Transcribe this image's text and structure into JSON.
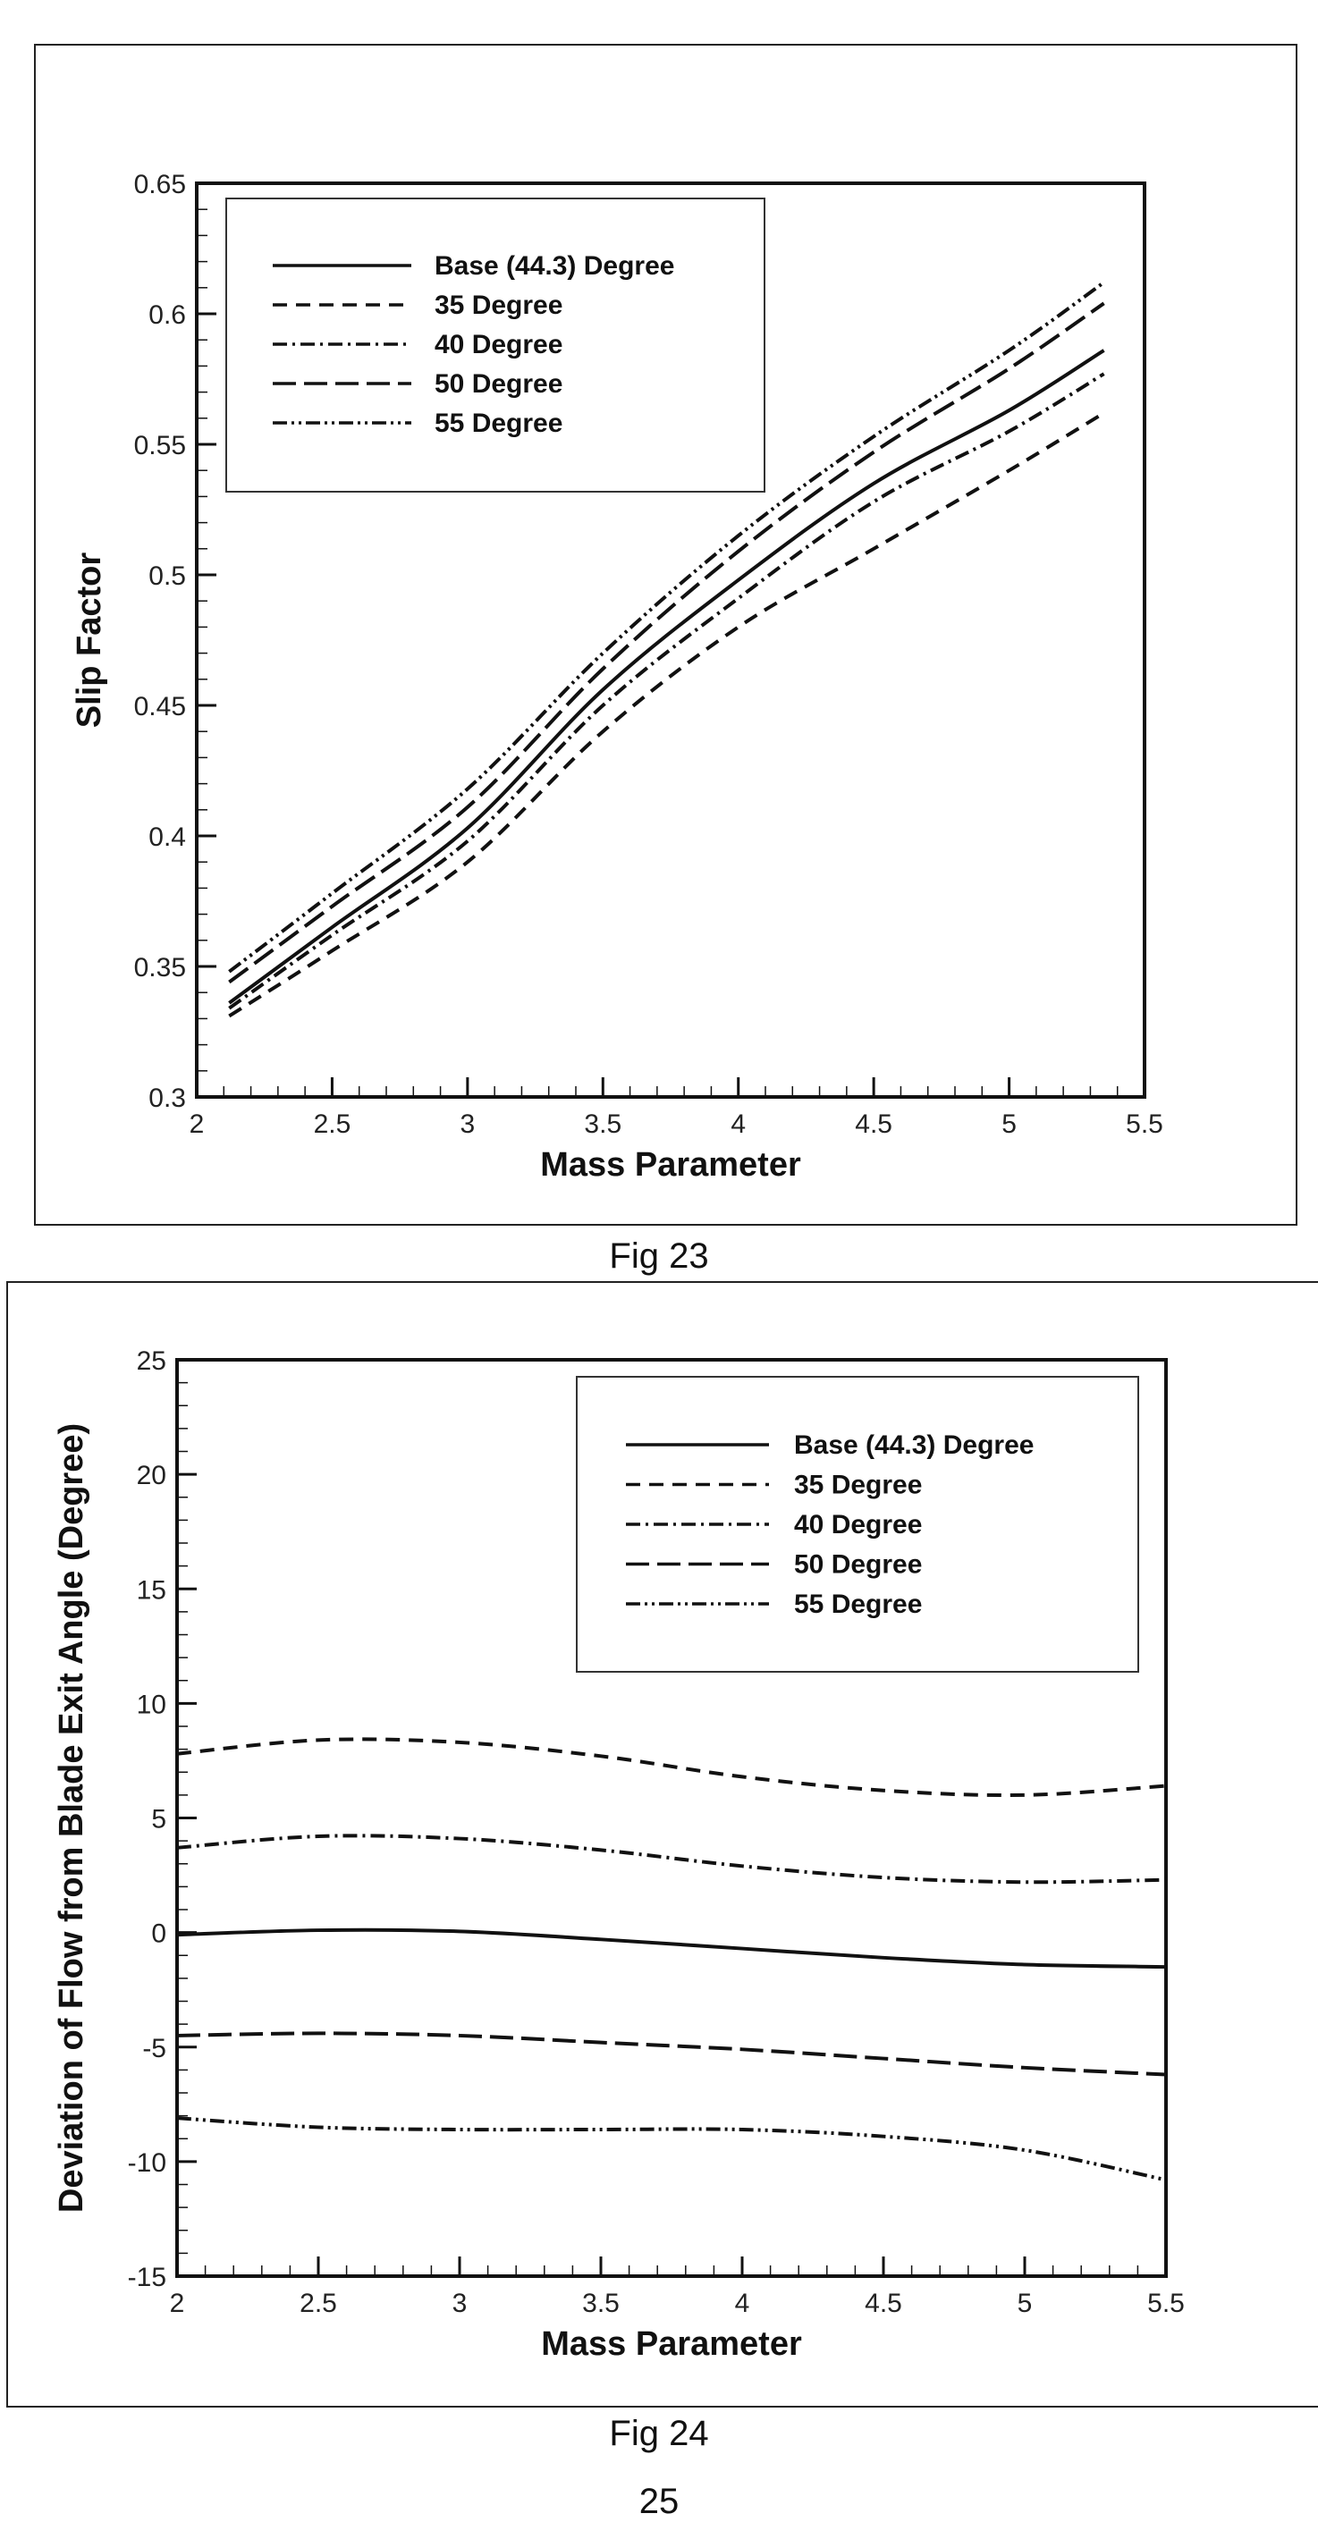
{
  "chart_data": [
    {
      "type": "line",
      "title": "",
      "caption": "Fig 23",
      "xlabel": "Mass Parameter",
      "ylabel": "Slip Factor",
      "xlim": [
        2,
        5.5
      ],
      "ylim": [
        0.3,
        0.65
      ],
      "xticks": [
        "2",
        "2.5",
        "3",
        "3.5",
        "4",
        "4.5",
        "5",
        "5.5"
      ],
      "yticks": [
        "0.3",
        "0.35",
        "0.4",
        "0.45",
        "0.5",
        "0.55",
        "0.6",
        "0.65"
      ],
      "legend_position": "top-left",
      "x": [
        2.12,
        2.5,
        3,
        3.5,
        4,
        4.5,
        5,
        5.35
      ],
      "series": [
        {
          "name": "Base (44.3)  Degree",
          "style": "solid",
          "values": [
            0.336,
            0.365,
            0.403,
            0.456,
            0.498,
            0.535,
            0.563,
            0.586
          ]
        },
        {
          "name": "35 Degree",
          "style": "dashed",
          "values": [
            0.331,
            0.356,
            0.39,
            0.44,
            0.48,
            0.51,
            0.54,
            0.562
          ]
        },
        {
          "name": "40 Degree",
          "style": "dash-dot",
          "values": [
            0.334,
            0.362,
            0.398,
            0.45,
            0.491,
            0.528,
            0.555,
            0.577
          ]
        },
        {
          "name": "50 Degree",
          "style": "long-dash",
          "values": [
            0.344,
            0.373,
            0.411,
            0.464,
            0.509,
            0.547,
            0.579,
            0.604
          ]
        },
        {
          "name": "55 Degree",
          "style": "dash-dot-dot",
          "values": [
            0.348,
            0.378,
            0.418,
            0.47,
            0.515,
            0.553,
            0.586,
            0.612
          ]
        }
      ]
    },
    {
      "type": "line",
      "title": "",
      "caption": "Fig 24",
      "xlabel": "Mass Parameter",
      "ylabel": "Deviation of Flow from Blade Exit Angle (Degree)",
      "xlim": [
        2,
        5.5
      ],
      "ylim": [
        -15,
        25
      ],
      "xticks": [
        "2",
        "2.5",
        "3",
        "3.5",
        "4",
        "4.5",
        "5",
        "5.5"
      ],
      "yticks": [
        "-15",
        "-10",
        "-5",
        "0",
        "5",
        "10",
        "15",
        "20",
        "25"
      ],
      "legend_position": "top-right",
      "x": [
        2,
        2.5,
        3,
        3.5,
        4,
        4.5,
        5,
        5.5
      ],
      "series": [
        {
          "name": "Base (44.3)  Degree",
          "style": "solid",
          "values": [
            -0.1,
            0.1,
            0.05,
            -0.3,
            -0.7,
            -1.1,
            -1.4,
            -1.5
          ]
        },
        {
          "name": "35 Degree",
          "style": "dashed",
          "values": [
            7.8,
            8.4,
            8.3,
            7.7,
            6.8,
            6.2,
            6.0,
            6.4
          ]
        },
        {
          "name": "40 Degree",
          "style": "dash-dot",
          "values": [
            3.7,
            4.2,
            4.1,
            3.6,
            2.9,
            2.4,
            2.2,
            2.3
          ]
        },
        {
          "name": "50 Degree",
          "style": "long-dash",
          "values": [
            -4.5,
            -4.4,
            -4.5,
            -4.8,
            -5.1,
            -5.5,
            -5.9,
            -6.2
          ]
        },
        {
          "name": "55 Degree",
          "style": "dash-dot-dot",
          "values": [
            -8.1,
            -8.5,
            -8.6,
            -8.6,
            -8.6,
            -8.9,
            -9.5,
            -10.8
          ]
        }
      ]
    }
  ],
  "page_number": "25"
}
